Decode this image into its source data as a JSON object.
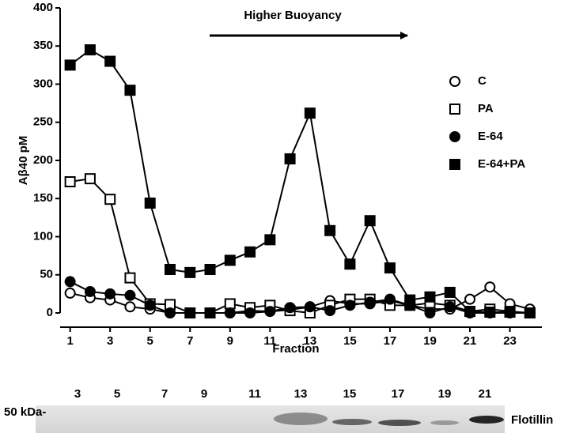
{
  "chart_data": {
    "type": "line",
    "annotation": "Higher Buoyancy",
    "y_label": "Aβ40 pM",
    "x_label": "Fraction",
    "x": [
      1,
      2,
      3,
      4,
      5,
      6,
      7,
      8,
      9,
      10,
      11,
      12,
      13,
      14,
      15,
      16,
      17,
      18,
      19,
      20,
      21,
      22,
      23,
      24
    ],
    "xlim": [
      0.5,
      24.6
    ],
    "xticks": [
      1,
      3,
      5,
      7,
      9,
      11,
      13,
      15,
      17,
      19,
      21,
      23
    ],
    "ylim": [
      0,
      400
    ],
    "yticks": [
      0,
      50,
      100,
      150,
      200,
      250,
      300,
      350,
      400
    ],
    "series": [
      {
        "name": "C",
        "color": "#000000",
        "marker": "circle",
        "filled": false,
        "values": [
          26,
          20,
          17,
          8,
          5,
          0,
          0,
          0,
          0,
          3,
          2,
          4,
          8,
          16,
          12,
          12,
          16,
          10,
          5,
          5,
          18,
          34,
          12,
          5
        ]
      },
      {
        "name": "PA",
        "color": "#000000",
        "marker": "square",
        "filled": false,
        "values": [
          172,
          176,
          149,
          46,
          12,
          11,
          0,
          0,
          12,
          7,
          10,
          3,
          0,
          10,
          18,
          18,
          10,
          10,
          13,
          10,
          2,
          5,
          2,
          0
        ]
      },
      {
        "name": "E-64",
        "color": "#000000",
        "marker": "circle",
        "filled": true,
        "values": [
          41,
          28,
          25,
          23,
          10,
          0,
          0,
          0,
          0,
          0,
          2,
          7,
          8,
          3,
          10,
          14,
          18,
          10,
          0,
          8,
          0,
          0,
          0,
          0
        ]
      },
      {
        "name": "E-64+PA",
        "color": "#000000",
        "marker": "square",
        "filled": true,
        "values": [
          325,
          345,
          330,
          292,
          144,
          57,
          53,
          57,
          69,
          80,
          96,
          202,
          262,
          108,
          64,
          121,
          59,
          17,
          21,
          27,
          2,
          1,
          1,
          0
        ]
      }
    ]
  },
  "blot": {
    "lane_labels": [
      "3",
      "5",
      "7",
      "9",
      "11",
      "13",
      "15",
      "17",
      "19",
      "21"
    ],
    "size_marker": "50 kDa-",
    "protein": "Flotillin"
  }
}
